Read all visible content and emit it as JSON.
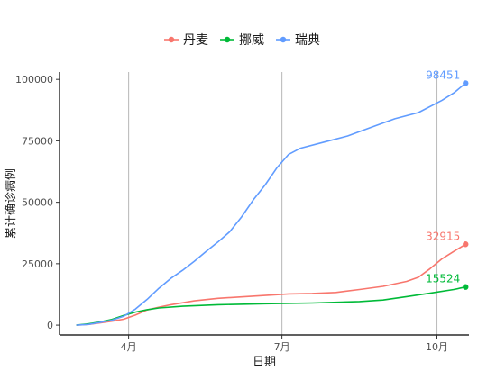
{
  "chart_data": {
    "type": "line",
    "title": "",
    "xlabel": "日期",
    "ylabel": "累计确诊病例",
    "x_ticks": [
      {
        "label": "4月",
        "date": "2020-04-01"
      },
      {
        "label": "7月",
        "date": "2020-07-01"
      },
      {
        "label": "10月",
        "date": "2020-10-01"
      }
    ],
    "xlim": [
      "2020-02-20",
      "2020-10-20"
    ],
    "ylim": [
      -4000,
      103000
    ],
    "y_ticks": [
      0,
      25000,
      50000,
      75000,
      100000
    ],
    "y_tick_labels": [
      "0",
      "25000",
      "50000",
      "75000",
      "100000"
    ],
    "grid": "vertical major gridlines only",
    "legend": {
      "position": "top"
    },
    "series": [
      {
        "name": "丹麦",
        "color": "#f8766d",
        "end_label": "32915",
        "points": [
          [
            "2020-03-01",
            0
          ],
          [
            "2020-03-08",
            300
          ],
          [
            "2020-03-15",
            900
          ],
          [
            "2020-03-22",
            1600
          ],
          [
            "2020-03-29",
            2400
          ],
          [
            "2020-04-05",
            4100
          ],
          [
            "2020-04-12",
            6200
          ],
          [
            "2020-04-19",
            7300
          ],
          [
            "2020-04-26",
            8300
          ],
          [
            "2020-05-10",
            9900
          ],
          [
            "2020-05-24",
            10900
          ],
          [
            "2020-06-07",
            11500
          ],
          [
            "2020-06-21",
            12100
          ],
          [
            "2020-07-05",
            12700
          ],
          [
            "2020-07-19",
            12900
          ],
          [
            "2020-08-02",
            13300
          ],
          [
            "2020-08-16",
            14500
          ],
          [
            "2020-08-30",
            15800
          ],
          [
            "2020-09-13",
            17800
          ],
          [
            "2020-09-20",
            19500
          ],
          [
            "2020-09-27",
            23000
          ],
          [
            "2020-10-04",
            27000
          ],
          [
            "2020-10-11",
            30000
          ],
          [
            "2020-10-18",
            32915
          ]
        ]
      },
      {
        "name": "挪威",
        "color": "#00ba38",
        "end_label": "15524",
        "points": [
          [
            "2020-03-01",
            0
          ],
          [
            "2020-03-08",
            500
          ],
          [
            "2020-03-15",
            1300
          ],
          [
            "2020-03-22",
            2300
          ],
          [
            "2020-03-29",
            3900
          ],
          [
            "2020-04-05",
            5300
          ],
          [
            "2020-04-12",
            6300
          ],
          [
            "2020-04-19",
            7000
          ],
          [
            "2020-05-03",
            7700
          ],
          [
            "2020-05-24",
            8300
          ],
          [
            "2020-06-21",
            8700
          ],
          [
            "2020-07-19",
            9000
          ],
          [
            "2020-08-16",
            9600
          ],
          [
            "2020-08-30",
            10200
          ],
          [
            "2020-09-13",
            11600
          ],
          [
            "2020-09-27",
            13000
          ],
          [
            "2020-10-11",
            14500
          ],
          [
            "2020-10-18",
            15524
          ]
        ]
      },
      {
        "name": "瑞典",
        "color": "#619cff",
        "end_label": "98451",
        "points": [
          [
            "2020-03-01",
            0
          ],
          [
            "2020-03-08",
            300
          ],
          [
            "2020-03-15",
            1100
          ],
          [
            "2020-03-22",
            2000
          ],
          [
            "2020-03-29",
            3600
          ],
          [
            "2020-04-05",
            6500
          ],
          [
            "2020-04-12",
            10500
          ],
          [
            "2020-04-19",
            15000
          ],
          [
            "2020-04-26",
            19000
          ],
          [
            "2020-05-03",
            22300
          ],
          [
            "2020-05-10",
            26000
          ],
          [
            "2020-05-17",
            30000
          ],
          [
            "2020-05-24",
            33800
          ],
          [
            "2020-05-31",
            38000
          ],
          [
            "2020-06-07",
            44000
          ],
          [
            "2020-06-14",
            51000
          ],
          [
            "2020-06-21",
            57000
          ],
          [
            "2020-06-28",
            64000
          ],
          [
            "2020-07-05",
            69500
          ],
          [
            "2020-07-12",
            72000
          ],
          [
            "2020-07-26",
            74500
          ],
          [
            "2020-08-09",
            77000
          ],
          [
            "2020-08-23",
            80500
          ],
          [
            "2020-09-06",
            84000
          ],
          [
            "2020-09-20",
            86500
          ],
          [
            "2020-10-04",
            91500
          ],
          [
            "2020-10-11",
            94500
          ],
          [
            "2020-10-18",
            98451
          ]
        ]
      }
    ]
  }
}
